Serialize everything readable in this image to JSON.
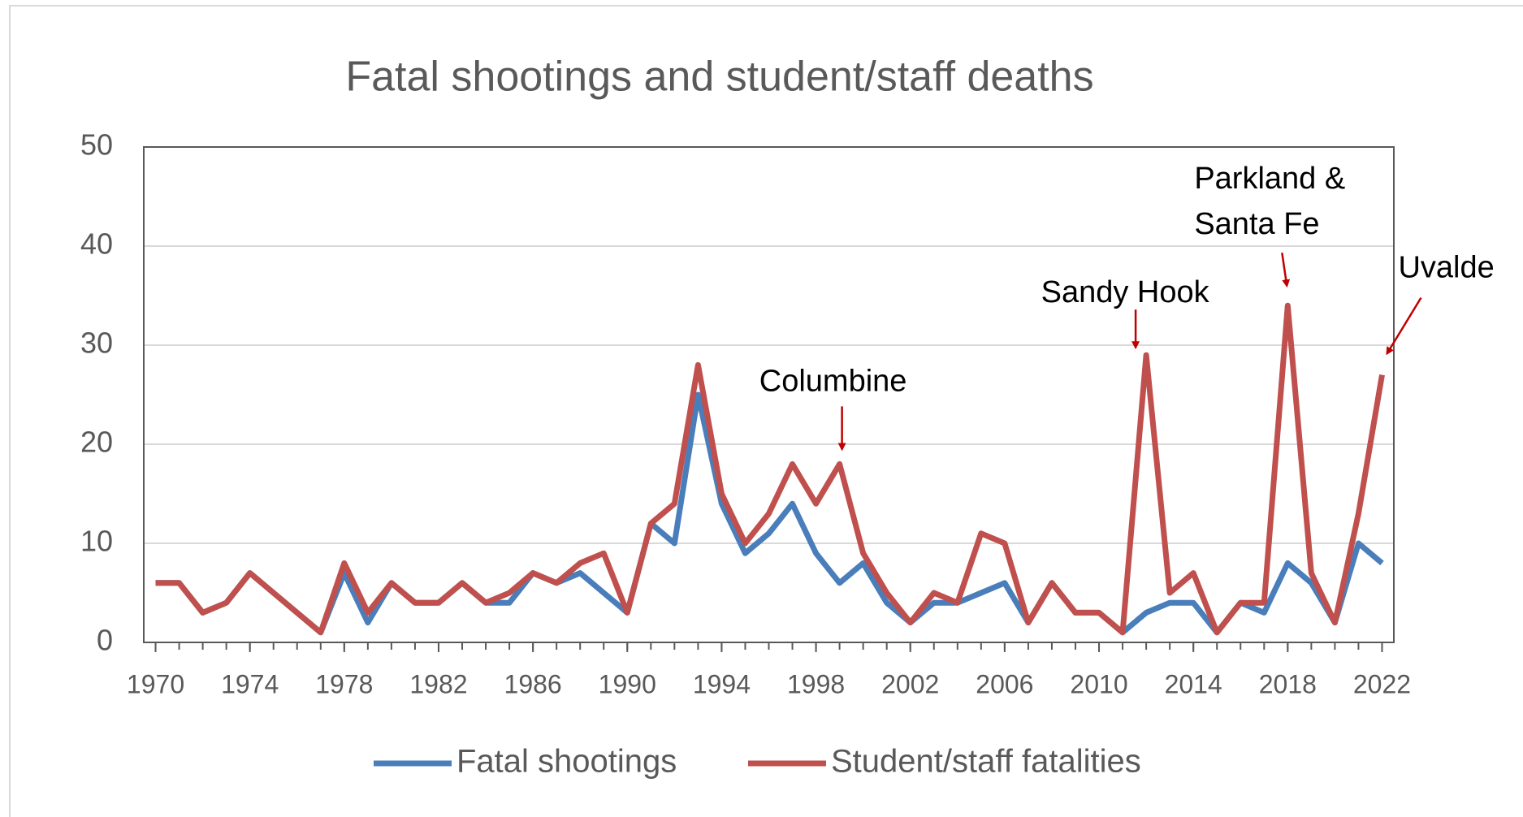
{
  "chart_data": {
    "type": "line",
    "title": "Fatal shootings and student/staff deaths",
    "x": [
      1970,
      1971,
      1972,
      1973,
      1974,
      1975,
      1976,
      1977,
      1978,
      1979,
      1980,
      1981,
      1982,
      1983,
      1984,
      1985,
      1986,
      1987,
      1988,
      1989,
      1990,
      1991,
      1992,
      1993,
      1994,
      1995,
      1996,
      1997,
      1998,
      1999,
      2000,
      2001,
      2002,
      2003,
      2004,
      2005,
      2006,
      2007,
      2008,
      2009,
      2010,
      2011,
      2012,
      2013,
      2014,
      2015,
      2016,
      2017,
      2018,
      2019,
      2020,
      2021,
      2022
    ],
    "series": [
      {
        "name": "Fatal shootings",
        "color": "#4a7ebb",
        "values": [
          6,
          6,
          3,
          4,
          7,
          5,
          3,
          1,
          7,
          2,
          6,
          4,
          4,
          6,
          4,
          4,
          7,
          6,
          7,
          5,
          3,
          12,
          10,
          25,
          14,
          9,
          11,
          14,
          9,
          6,
          8,
          4,
          2,
          4,
          4,
          5,
          6,
          2,
          6,
          3,
          3,
          1,
          3,
          4,
          4,
          1,
          4,
          3,
          8,
          6,
          2,
          10,
          8
        ]
      },
      {
        "name": "Student/staff fatalities",
        "color": "#c0504d",
        "values": [
          6,
          6,
          3,
          4,
          7,
          5,
          3,
          1,
          8,
          3,
          6,
          4,
          4,
          6,
          4,
          5,
          7,
          6,
          8,
          9,
          3,
          12,
          14,
          28,
          15,
          10,
          13,
          18,
          14,
          18,
          9,
          5,
          2,
          5,
          4,
          11,
          10,
          2,
          6,
          3,
          3,
          1,
          29,
          5,
          7,
          1,
          4,
          4,
          34,
          7,
          2,
          13,
          27
        ]
      }
    ],
    "xlim": [
      1969.5,
      2022.5
    ],
    "xticks": [
      1970,
      1974,
      1978,
      1982,
      1986,
      1990,
      1994,
      1998,
      2002,
      2006,
      2010,
      2014,
      2018,
      2022
    ],
    "ylim": [
      0,
      50
    ],
    "yticks": [
      0,
      10,
      20,
      30,
      40,
      50
    ],
    "grid": true,
    "legend": "bottom",
    "annotations": [
      {
        "text": [
          "Columbine"
        ],
        "x": 1999
      },
      {
        "text": [
          "Sandy Hook"
        ],
        "x": 2012
      },
      {
        "text": [
          "Parkland &",
          "Santa Fe"
        ],
        "x": 2018
      },
      {
        "text": [
          "Uvalde"
        ],
        "x": 2022
      }
    ]
  }
}
